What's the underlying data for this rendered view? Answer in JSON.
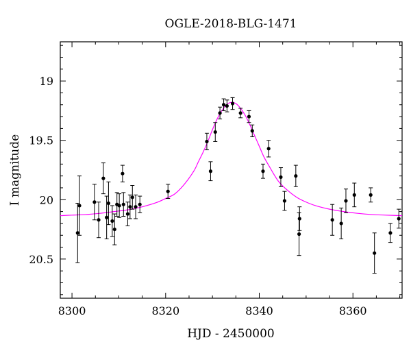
{
  "chart_data": {
    "type": "scatter",
    "title": "OGLE-2018-BLG-1471",
    "xlabel": "HJD - 2450000",
    "ylabel": "I magnitude",
    "xlim": [
      8297.5,
      8370.5
    ],
    "ylim": [
      20.83,
      18.67
    ],
    "y_inverted": true,
    "grid": false,
    "x_ticks": [
      8300,
      8320,
      8340,
      8360
    ],
    "y_ticks": [
      19,
      19.5,
      20,
      20.5
    ],
    "colors": {
      "data": "#000000",
      "model": "#ff00ff"
    },
    "series": [
      {
        "kind": "points_with_errorbars",
        "x": [
          8301.2,
          8301.6,
          8304.8,
          8305.7,
          8306.7,
          8307.4,
          8307.8,
          8308.6,
          8309.1,
          8309.6,
          8310.1,
          8310.8,
          8311.0,
          8311.9,
          8312.4,
          8312.9,
          8313.6,
          8314.5,
          8320.5,
          8328.8,
          8329.6,
          8330.6,
          8331.6,
          8332.4,
          8333.1,
          8334.3,
          8336.0,
          8337.8,
          8338.5,
          8340.8,
          8342.0,
          8344.6,
          8345.4,
          8347.8,
          8348.5,
          8348.6,
          8355.6,
          8357.5,
          8358.5,
          8360.3,
          8363.8,
          8364.6,
          8368.0,
          8369.8
        ],
        "y": [
          20.28,
          20.05,
          20.02,
          20.17,
          19.82,
          20.15,
          20.03,
          20.18,
          20.25,
          20.04,
          20.05,
          19.78,
          20.04,
          20.12,
          20.06,
          19.98,
          20.06,
          20.04,
          19.93,
          19.51,
          19.76,
          19.43,
          19.27,
          19.2,
          19.21,
          19.19,
          19.27,
          19.3,
          19.42,
          19.76,
          19.57,
          19.81,
          20.01,
          19.8,
          20.29,
          20.16,
          20.17,
          20.2,
          20.01,
          19.96,
          19.96,
          20.45,
          20.28,
          20.16
        ],
        "yerr": [
          0.25,
          0.25,
          0.15,
          0.15,
          0.13,
          0.18,
          0.18,
          0.13,
          0.13,
          0.1,
          0.1,
          0.07,
          0.1,
          0.1,
          0.1,
          0.1,
          0.1,
          0.07,
          0.06,
          0.07,
          0.08,
          0.08,
          0.05,
          0.05,
          0.05,
          0.05,
          0.04,
          0.05,
          0.05,
          0.06,
          0.07,
          0.08,
          0.08,
          0.09,
          0.18,
          0.1,
          0.13,
          0.13,
          0.1,
          0.1,
          0.06,
          0.17,
          0.08,
          0.08
        ]
      },
      {
        "kind": "model_curve",
        "x": [
          8297.5,
          8300,
          8303,
          8306,
          8309,
          8312,
          8315,
          8318,
          8320,
          8322,
          8324,
          8326,
          8327,
          8328,
          8329,
          8330,
          8331,
          8332,
          8333,
          8334,
          8335,
          8336,
          8337,
          8338,
          8339,
          8340,
          8341,
          8342,
          8344,
          8346,
          8348,
          8350,
          8352,
          8355,
          8358,
          8361,
          8364,
          8367,
          8370.5
        ],
        "y": [
          20.135,
          20.13,
          20.125,
          20.115,
          20.1,
          20.085,
          20.06,
          20.025,
          19.99,
          19.95,
          19.87,
          19.76,
          19.68,
          19.6,
          19.51,
          19.41,
          19.32,
          19.25,
          19.2,
          19.18,
          19.19,
          19.23,
          19.29,
          19.37,
          19.46,
          19.55,
          19.64,
          19.71,
          19.84,
          19.92,
          19.98,
          20.02,
          20.05,
          20.08,
          20.1,
          20.115,
          20.125,
          20.13,
          20.135
        ]
      }
    ]
  }
}
